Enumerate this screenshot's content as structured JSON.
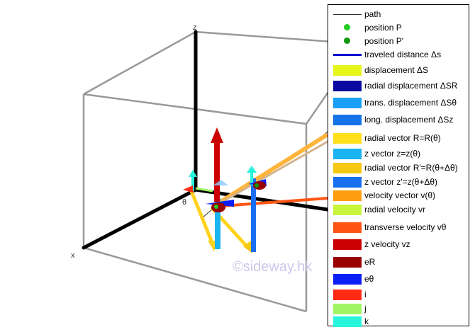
{
  "axes": {
    "x": "x",
    "z": "z",
    "theta": "θ"
  },
  "watermark": "©sideway.hk",
  "legend": [
    {
      "label": "path",
      "kind": "line",
      "color": "#333333"
    },
    {
      "label": "position P",
      "kind": "dot",
      "color": "#22cc22"
    },
    {
      "label": "position P'",
      "kind": "dot",
      "color": "#119911"
    },
    {
      "label": "traveled distance Δs",
      "kind": "thickline",
      "color": "#0000cc"
    },
    {
      "label": "displacement ΔS",
      "kind": "box",
      "color": "#e6f51a"
    },
    {
      "label": "radial displacement ΔSR",
      "kind": "box",
      "color": "#0a0aa0"
    },
    {
      "label": "trans. displacement ΔSθ",
      "kind": "box",
      "color": "#1aa0f5"
    },
    {
      "label": "long. displacement ΔSz",
      "kind": "box",
      "color": "#1473e6"
    },
    {
      "label": "radial vector R=R(θ)",
      "kind": "box",
      "color": "#ffe01a"
    },
    {
      "label": "z vector z=z(θ)",
      "kind": "box",
      "color": "#1ab4f0"
    },
    {
      "label": "radial vector R'=R(θ+Δθ)",
      "kind": "box",
      "color": "#f5c814"
    },
    {
      "label": "z vector z'=z(θ+Δθ)",
      "kind": "box",
      "color": "#1a6ef0"
    },
    {
      "label": "velocity vector v(θ)",
      "kind": "box",
      "color": "#ff9f10"
    },
    {
      "label": "radial velocity vr",
      "kind": "box",
      "color": "#c8f53c"
    },
    {
      "label": "transverse velocity vθ",
      "kind": "box",
      "color": "#ff5514"
    },
    {
      "label": "z velocity vz",
      "kind": "box",
      "color": "#cc0000"
    },
    {
      "label": "eR",
      "kind": "box",
      "color": "#990000"
    },
    {
      "label": "eθ",
      "kind": "box",
      "color": "#0a1ef5"
    },
    {
      "label": "i",
      "kind": "box",
      "color": "#ff2a14"
    },
    {
      "label": "j",
      "kind": "box",
      "color": "#a0f564"
    },
    {
      "label": "k",
      "kind": "box",
      "color": "#28f5dc"
    }
  ]
}
